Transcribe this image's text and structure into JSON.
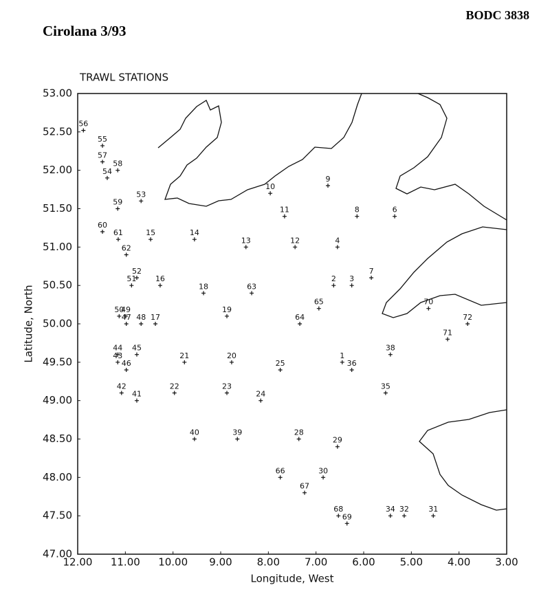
{
  "header": {
    "cruise": "Cirolana 3/93",
    "reference": "BODC 3838"
  },
  "chart_data": {
    "type": "scatter",
    "title": "TRAWL STATIONS",
    "xlabel": "Longitude, West",
    "ylabel": "Latitude, North",
    "xlim": [
      12,
      3
    ],
    "ylim": [
      47,
      53
    ],
    "xticks": [
      {
        "value": 12,
        "label": "12.00"
      },
      {
        "value": 11,
        "label": "11.00"
      },
      {
        "value": 10,
        "label": "10.00"
      },
      {
        "value": 9,
        "label": "9.00"
      },
      {
        "value": 8,
        "label": "8.00"
      },
      {
        "value": 7,
        "label": "7.00"
      },
      {
        "value": 6,
        "label": "6.00"
      },
      {
        "value": 5,
        "label": "5.00"
      },
      {
        "value": 4,
        "label": "4.00"
      },
      {
        "value": 3,
        "label": "3.00"
      }
    ],
    "yticks": [
      {
        "value": 47,
        "label": "47.00"
      },
      {
        "value": 47.5,
        "label": "47.50"
      },
      {
        "value": 48,
        "label": "48.00"
      },
      {
        "value": 48.5,
        "label": "48.50"
      },
      {
        "value": 49,
        "label": "49.00"
      },
      {
        "value": 49.5,
        "label": "49.50"
      },
      {
        "value": 50,
        "label": "50.00"
      },
      {
        "value": 50.5,
        "label": "50.50"
      },
      {
        "value": 51,
        "label": "51.00"
      },
      {
        "value": 51.5,
        "label": "51.50"
      },
      {
        "value": 52,
        "label": "52.00"
      },
      {
        "value": 52.5,
        "label": "52.50"
      },
      {
        "value": 53,
        "label": "53.00"
      }
    ],
    "grid": false,
    "series": [
      {
        "name": "Trawl stations",
        "color": "#111111",
        "labels": [
          "56",
          "55",
          "57",
          "58",
          "54",
          "59",
          "53",
          "60",
          "61",
          "15",
          "14",
          "62",
          "52",
          "51",
          "16",
          "18",
          "13",
          "63",
          "12",
          "4",
          "11",
          "10",
          "9",
          "8",
          "6",
          "2",
          "3",
          "7",
          "65",
          "64",
          "19",
          "50",
          "49",
          "47",
          "48",
          "17",
          "44",
          "45",
          "43",
          "46",
          "21",
          "20",
          "25",
          "1",
          "36",
          "38",
          "35",
          "42",
          "41",
          "22",
          "23",
          "24",
          "40",
          "39",
          "28",
          "29",
          "66",
          "30",
          "67",
          "68",
          "69",
          "34",
          "32",
          "31",
          "70",
          "72",
          "71"
        ],
        "x": [
          11.88,
          11.48,
          11.48,
          11.16,
          11.38,
          11.16,
          10.67,
          11.48,
          11.15,
          10.47,
          9.55,
          10.98,
          10.76,
          10.87,
          10.27,
          9.36,
          8.47,
          8.35,
          7.44,
          6.55,
          7.66,
          7.96,
          6.75,
          6.14,
          5.35,
          6.63,
          6.25,
          5.84,
          6.94,
          7.34,
          8.87,
          11.13,
          10.99,
          10.98,
          10.67,
          10.37,
          11.16,
          10.76,
          11.16,
          10.98,
          9.76,
          8.77,
          7.75,
          6.45,
          6.25,
          5.44,
          5.54,
          11.08,
          10.76,
          9.97,
          8.87,
          8.16,
          9.55,
          8.65,
          7.36,
          6.55,
          7.75,
          6.85,
          7.24,
          6.53,
          6.35,
          5.44,
          5.15,
          4.54,
          4.64,
          3.82,
          4.24
        ],
        "values": [
          52.52,
          52.32,
          52.11,
          52.0,
          51.9,
          51.5,
          51.6,
          51.2,
          51.1,
          51.1,
          51.1,
          50.9,
          50.6,
          50.5,
          50.5,
          50.4,
          51.0,
          50.4,
          51.0,
          51.0,
          51.4,
          51.7,
          51.8,
          51.4,
          51.4,
          50.5,
          50.5,
          50.6,
          50.2,
          50.0,
          50.1,
          50.1,
          50.1,
          50.0,
          50.0,
          50.0,
          49.6,
          49.6,
          49.5,
          49.4,
          49.5,
          49.5,
          49.4,
          49.5,
          49.4,
          49.6,
          49.1,
          49.1,
          49.0,
          49.1,
          49.1,
          49.0,
          48.5,
          48.5,
          48.5,
          48.4,
          48.0,
          48.0,
          47.8,
          47.5,
          47.4,
          47.5,
          47.5,
          47.5,
          50.2,
          50.0,
          49.8
        ]
      }
    ]
  }
}
